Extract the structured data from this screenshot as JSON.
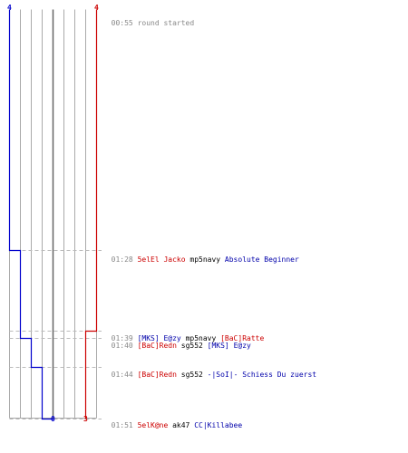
{
  "colors": {
    "team_a": "#0000cc",
    "team_b": "#cc0000",
    "kill_red": "#cc0000",
    "kill_blue": "#0000aa",
    "time": "#888888",
    "grid": "#aaaaaa",
    "dash": "#bbbbbb"
  },
  "counters": {
    "team_a_start": "4",
    "team_b_start": "4",
    "team_a_end": "0",
    "team_b_end": "3"
  },
  "round_start": {
    "time": "00:55",
    "text": "round started"
  },
  "kills": [
    {
      "time": "01:28",
      "killer": "5elEl Jacko",
      "killer_team": "red",
      "weapon": "mp5navy",
      "victim": "Absolute Beginner",
      "victim_team": "blue",
      "team_a_after": 3,
      "team_b_after": 4
    },
    {
      "time": "01:39",
      "killer": "[MKS] E@zy",
      "killer_team": "blue",
      "weapon": "mp5navy",
      "victim": "[BaC]Ratte",
      "victim_team": "red",
      "team_a_after": 3,
      "team_b_after": 3
    },
    {
      "time": "01:40",
      "killer": "[BaC]Redn",
      "killer_team": "red",
      "weapon": "sg552",
      "victim": "[MKS] E@zy",
      "victim_team": "blue",
      "team_a_after": 2,
      "team_b_after": 3
    },
    {
      "time": "01:44",
      "killer": "[BaC]Redn",
      "killer_team": "red",
      "weapon": "sg552",
      "victim": "-|SoI|- Schiess Du zuerst",
      "victim_team": "blue",
      "team_a_after": 1,
      "team_b_after": 3
    },
    {
      "time": "01:51",
      "killer": "5elK@ne",
      "killer_team": "red",
      "weapon": "ak47",
      "victim": "CC|Killabee",
      "victim_team": "blue",
      "team_a_after": 0,
      "team_b_after": 3
    }
  ]
}
